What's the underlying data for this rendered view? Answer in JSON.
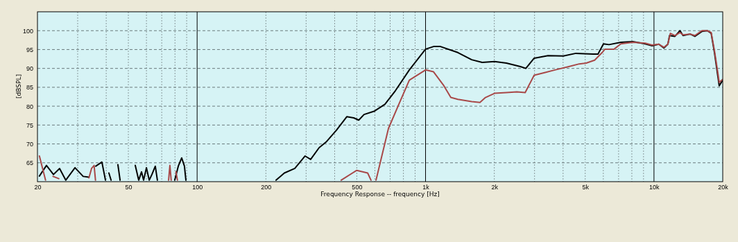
{
  "chart_data": {
    "type": "line",
    "xlabel": "Frequency Response -- frequency [Hz]",
    "ylabel": "[dBSPL]",
    "log": "x",
    "grid": true,
    "legend": false,
    "line_style": "solid",
    "marker": "none",
    "xlim": [
      20,
      20000
    ],
    "ylim": [
      60,
      105
    ],
    "xticks": [
      20,
      {
        "value": 30,
        "label": null
      },
      {
        "value": 40,
        "label": null
      },
      50,
      {
        "value": 60,
        "label": null
      },
      {
        "value": 70,
        "label": null
      },
      {
        "value": 80,
        "label": null
      },
      {
        "value": 90,
        "label": null
      },
      100,
      200,
      {
        "value": 300,
        "label": null
      },
      {
        "value": 400,
        "label": null
      },
      500,
      {
        "value": 600,
        "label": null
      },
      {
        "value": 700,
        "label": null
      },
      {
        "value": 800,
        "label": null
      },
      {
        "value": 900,
        "label": null
      },
      {
        "value": 1000,
        "label": "1k"
      },
      {
        "value": 2000,
        "label": "2k"
      },
      {
        "value": 3000,
        "label": null
      },
      {
        "value": 4000,
        "label": null
      },
      {
        "value": 5000,
        "label": "5k"
      },
      {
        "value": 6000,
        "label": null
      },
      {
        "value": 7000,
        "label": null
      },
      {
        "value": 8000,
        "label": null
      },
      {
        "value": 9000,
        "label": null
      },
      {
        "value": 10000,
        "label": "10k"
      },
      {
        "value": 20000,
        "label": "20k"
      }
    ],
    "yticks": [
      65,
      70,
      75,
      80,
      85,
      90,
      95,
      100
    ],
    "series": [
      {
        "color": "#000000",
        "x": [
          20.4,
          21.9,
          23.5,
          25.0,
          26.6,
          29.2,
          31.7,
          33.6,
          34.5,
          36.0,
          38.3,
          39.7,
          40.5,
          41.1,
          42.0,
          43.5,
          45.0,
          46.0,
          50,
          53.6,
          55.5,
          57.1,
          58.3,
          60.0,
          61.7,
          63.4,
          65.6,
          67.0,
          75,
          79.8,
          82.7,
          85.6,
          88.0,
          89.3,
          150,
          221.6,
          241,
          267.7,
          297,
          314,
          342,
          367,
          407,
          452,
          485,
          510,
          538,
          598,
          664,
          738,
          849,
          1000,
          1084,
          1162,
          1385,
          1592,
          1770,
          2005,
          2260,
          2600,
          2748,
          2988,
          3437,
          4010,
          4553,
          5410,
          5688,
          6010,
          6355,
          7160,
          8070,
          9150,
          9810,
          10500,
          11050,
          11500,
          11700,
          12350,
          13000,
          13400,
          14400,
          15100,
          16200,
          17100,
          17800,
          18400,
          19050,
          19300,
          20000
        ],
        "values": [
          61.5,
          64.3,
          61.9,
          63.5,
          60.4,
          63.7,
          61.4,
          61.2,
          null,
          64.1,
          65.2,
          60.4,
          null,
          62.3,
          60.4,
          null,
          64.5,
          60.4,
          null,
          64.3,
          60.4,
          62.6,
          60.4,
          63.7,
          60.4,
          61.9,
          64.1,
          60.4,
          null,
          60.4,
          64.1,
          66.3,
          64.1,
          60.4,
          null,
          60.4,
          62.3,
          63.5,
          66.8,
          65.9,
          69.0,
          70.5,
          73.6,
          77.2,
          76.9,
          76.3,
          77.8,
          78.7,
          80.5,
          84.1,
          89.6,
          95.1,
          95.8,
          95.8,
          94.2,
          92.3,
          91.6,
          91.8,
          91.4,
          90.5,
          90.0,
          92.7,
          93.4,
          93.3,
          94.0,
          93.8,
          93.8,
          96.5,
          96.3,
          96.9,
          97.1,
          96.5,
          96.0,
          96.4,
          95.4,
          96.4,
          98.7,
          98.5,
          100.0,
          98.7,
          99.1,
          98.5,
          99.8,
          100.0,
          99.3,
          94.2,
          87.8,
          85.4,
          86.9
        ]
      },
      {
        "color": "#a84848",
        "x": [
          20.4,
          21.7,
          22.5,
          23.4,
          24.8,
          30,
          33.6,
          34.5,
          35.4,
          35.9,
          50,
          75.0,
          76.0,
          77.0,
          79,
          80.8,
          82.0,
          200,
          427,
          500,
          558,
          577,
          600,
          607,
          688,
          764,
          849,
          1000,
          1084,
          1203,
          1290,
          1385,
          1592,
          1730,
          1830,
          2005,
          2260,
          2510,
          2730,
          2988,
          3320,
          3685,
          4240,
          4710,
          5050,
          5500,
          5930,
          6100,
          6690,
          7160,
          8070,
          9150,
          9810,
          10500,
          11050,
          11500,
          11800,
          12350,
          13000,
          13400,
          14400,
          15100,
          16200,
          17100,
          17800,
          18400,
          19050,
          19300,
          20000
        ],
        "values": [
          66.8,
          60.4,
          null,
          61.4,
          60.8,
          null,
          61.0,
          63.5,
          64.3,
          60.4,
          null,
          60.4,
          64.3,
          60.4,
          null,
          62.6,
          60.4,
          null,
          60.4,
          63.0,
          62.3,
          60.4,
          null,
          60.4,
          74.1,
          80.5,
          86.9,
          89.6,
          89.1,
          85.4,
          82.3,
          81.8,
          81.2,
          81.0,
          82.3,
          83.4,
          83.6,
          83.8,
          83.6,
          88.2,
          88.9,
          89.6,
          90.5,
          91.2,
          91.4,
          92.2,
          94.2,
          95.1,
          95.1,
          96.5,
          96.9,
          96.7,
          96.2,
          96.4,
          95.6,
          96.4,
          99.3,
          98.7,
          99.5,
          98.9,
          99.1,
          98.7,
          100.0,
          100.0,
          99.5,
          94.7,
          88.7,
          86.3,
          87.1
        ]
      }
    ]
  }
}
